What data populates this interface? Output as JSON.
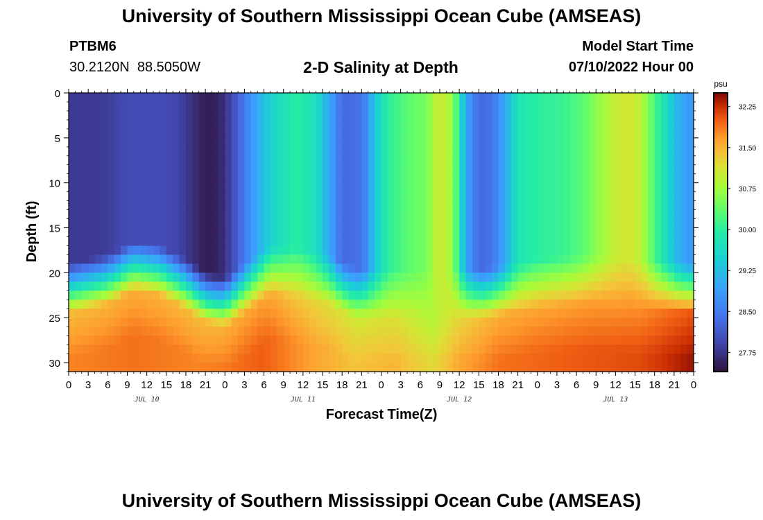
{
  "page": {
    "title": "University of Southern Mississippi Ocean Cube (AMSEAS)",
    "footer_title": "University of Southern Mississippi Ocean Cube (AMSEAS)",
    "station_id": "PTBM6",
    "coordinates": "30.2120N  88.5050W",
    "subtitle": "2-D Salinity at Depth",
    "model_start_label": "Model Start Time",
    "model_start_value": "07/10/2022 Hour 00"
  },
  "chart_data": {
    "type": "heatmap",
    "title": "2-D Salinity at Depth",
    "xlabel": "Forecast Time(Z)",
    "ylabel": "Depth (ft)",
    "x_range_hours": [
      0,
      96
    ],
    "ylim": [
      0,
      31
    ],
    "y_inverted": true,
    "x_tick_labels": [
      "0",
      "3",
      "6",
      "9",
      "12",
      "15",
      "18",
      "21",
      "0",
      "3",
      "6",
      "9",
      "12",
      "15",
      "18",
      "21",
      "0",
      "3",
      "6",
      "9",
      "12",
      "15",
      "18",
      "21",
      "0",
      "3",
      "6",
      "9",
      "12",
      "15",
      "18",
      "21",
      "0"
    ],
    "day_labels": [
      "JUL 10",
      "JUL 11",
      "JUL 12",
      "JUL 13"
    ],
    "y_tick_labels": [
      "0",
      "5",
      "10",
      "15",
      "20",
      "25",
      "30"
    ],
    "y_ticks": [
      0,
      5,
      10,
      15,
      20,
      25,
      30
    ],
    "colorbar": {
      "unit": "psu",
      "min": 27.4,
      "max": 32.5,
      "tick_values": [
        27.75,
        28.5,
        29.25,
        30.0,
        30.75,
        31.5,
        32.25
      ],
      "tick_labels": [
        "27.75",
        "28.50",
        "29.25",
        "30.00",
        "30.75",
        "31.50",
        "32.25"
      ]
    },
    "surface_salinity_by_hour": [
      {
        "h": 0,
        "v": 27.8
      },
      {
        "h": 5,
        "v": 27.8
      },
      {
        "h": 10,
        "v": 28.0
      },
      {
        "h": 14,
        "v": 28.0
      },
      {
        "h": 17,
        "v": 27.9
      },
      {
        "h": 20,
        "v": 27.6
      },
      {
        "h": 22,
        "v": 27.5
      },
      {
        "h": 24,
        "v": 27.7
      },
      {
        "h": 26,
        "v": 28.2
      },
      {
        "h": 28,
        "v": 28.8
      },
      {
        "h": 31,
        "v": 29.5
      },
      {
        "h": 35,
        "v": 30.0
      },
      {
        "h": 38,
        "v": 29.7
      },
      {
        "h": 40,
        "v": 29.0
      },
      {
        "h": 42,
        "v": 28.3
      },
      {
        "h": 45,
        "v": 28.4
      },
      {
        "h": 47,
        "v": 29.3
      },
      {
        "h": 49,
        "v": 30.0
      },
      {
        "h": 52,
        "v": 30.3
      },
      {
        "h": 55,
        "v": 30.5
      },
      {
        "h": 57,
        "v": 31.1
      },
      {
        "h": 59,
        "v": 30.7
      },
      {
        "h": 61,
        "v": 29.0
      },
      {
        "h": 63,
        "v": 28.3
      },
      {
        "h": 65,
        "v": 28.4
      },
      {
        "h": 67,
        "v": 29.0
      },
      {
        "h": 69,
        "v": 29.8
      },
      {
        "h": 72,
        "v": 30.0
      },
      {
        "h": 76,
        "v": 30.1
      },
      {
        "h": 79,
        "v": 30.3
      },
      {
        "h": 81,
        "v": 30.6
      },
      {
        "h": 84,
        "v": 31.0
      },
      {
        "h": 86,
        "v": 31.1
      },
      {
        "h": 88,
        "v": 30.9
      },
      {
        "h": 90,
        "v": 30.2
      },
      {
        "h": 92,
        "v": 29.6
      },
      {
        "h": 94,
        "v": 29.0
      },
      {
        "h": 96,
        "v": 28.8
      }
    ],
    "mixed_layer_depth_ft_by_hour": [
      {
        "h": 0,
        "v": 22
      },
      {
        "h": 6,
        "v": 21
      },
      {
        "h": 10,
        "v": 19.5
      },
      {
        "h": 14,
        "v": 20
      },
      {
        "h": 18,
        "v": 21.5
      },
      {
        "h": 21,
        "v": 23
      },
      {
        "h": 24,
        "v": 23.5
      },
      {
        "h": 27,
        "v": 22
      },
      {
        "h": 31,
        "v": 20
      },
      {
        "h": 36,
        "v": 20.5
      },
      {
        "h": 40,
        "v": 21
      },
      {
        "h": 44,
        "v": 22.5
      },
      {
        "h": 48,
        "v": 22.5
      },
      {
        "h": 52,
        "v": 22.5
      },
      {
        "h": 56,
        "v": 22.5
      },
      {
        "h": 60,
        "v": 22.5
      },
      {
        "h": 64,
        "v": 22.5
      },
      {
        "h": 68,
        "v": 22
      },
      {
        "h": 72,
        "v": 21.5
      },
      {
        "h": 80,
        "v": 21
      },
      {
        "h": 88,
        "v": 21.5
      },
      {
        "h": 96,
        "v": 22
      }
    ],
    "bottom_salinity_by_hour": [
      {
        "h": 0,
        "v": 31.8
      },
      {
        "h": 10,
        "v": 31.9
      },
      {
        "h": 20,
        "v": 31.8
      },
      {
        "h": 30,
        "v": 32.0
      },
      {
        "h": 38,
        "v": 31.6
      },
      {
        "h": 44,
        "v": 31.4
      },
      {
        "h": 50,
        "v": 31.5
      },
      {
        "h": 56,
        "v": 31.2
      },
      {
        "h": 60,
        "v": 31.6
      },
      {
        "h": 66,
        "v": 31.9
      },
      {
        "h": 76,
        "v": 32.0
      },
      {
        "h": 88,
        "v": 32.1
      },
      {
        "h": 96,
        "v": 32.4
      }
    ]
  }
}
